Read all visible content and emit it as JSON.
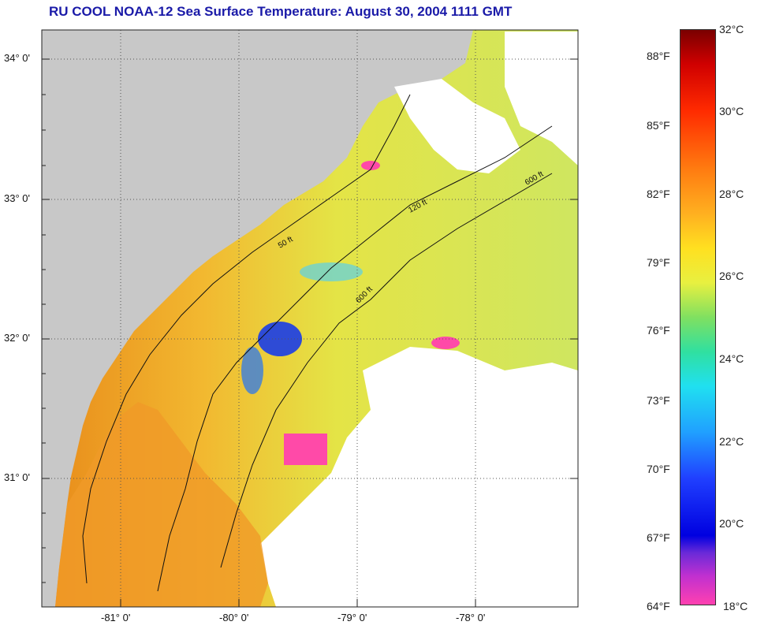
{
  "title": "RU COOL  NOAA-12  Sea Surface Temperature:  August 30, 2004 1111 GMT",
  "map": {
    "lat_labels": [
      "34° 0'",
      "33° 0'",
      "32° 0'",
      "31° 0'"
    ],
    "lon_labels": [
      "-81° 0'",
      "-80° 0'",
      "-79° 0'",
      "-78° 0'"
    ],
    "contour_labels": [
      "50 ft",
      "120 ft",
      "600 ft"
    ]
  },
  "colorbar": {
    "celsius": [
      "32°C",
      "30°C",
      "28°C",
      "26°C",
      "24°C",
      "22°C",
      "20°C",
      "18°C"
    ],
    "fahrenheit": [
      "88°F",
      "85°F",
      "82°F",
      "79°F",
      "76°F",
      "73°F",
      "70°F",
      "67°F",
      "64°F"
    ]
  },
  "colors": {
    "land": "#c8c8c8",
    "cloud": "#ffffff",
    "title": "#1a1aa8"
  }
}
